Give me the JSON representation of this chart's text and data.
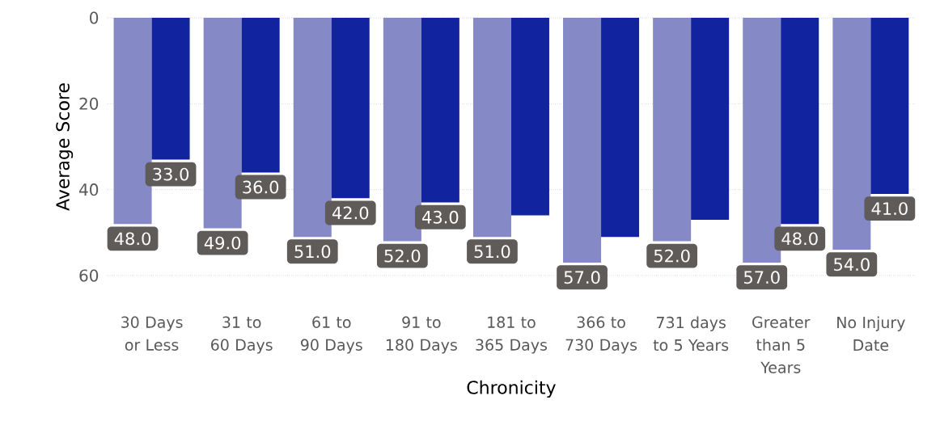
{
  "chart_data": {
    "type": "bar",
    "xlabel": "Chronicity",
    "ylabel": "Average Score",
    "categories": [
      "30 Days or Less",
      "31 to 60 Days",
      "61 to 90 Days",
      "91 to 180 Days",
      "181 to 365 Days",
      "366 to 730 Days",
      "731 days to 5 Years",
      "Greater than 5 Years",
      "No Injury Date"
    ],
    "series": [
      {
        "color": "#8589c6",
        "values": [
          48,
          49,
          51,
          52,
          51,
          57,
          52,
          57,
          54
        ],
        "value_labels": [
          "48.0",
          "49.0",
          "51.0",
          "52.0",
          "51.0",
          "57.0",
          "52.0",
          "57.0",
          "54.0"
        ]
      },
      {
        "color": "#1223a0",
        "values": [
          33,
          36,
          42,
          43,
          46,
          51,
          47,
          48,
          41
        ],
        "value_labels": [
          "33.0",
          "36.0",
          "42.0",
          "43.0",
          null,
          null,
          null,
          "48.0",
          "41.0"
        ]
      }
    ],
    "ylim": [
      60,
      0
    ],
    "yticks": [
      0,
      20,
      40,
      60
    ],
    "grid": "y"
  }
}
